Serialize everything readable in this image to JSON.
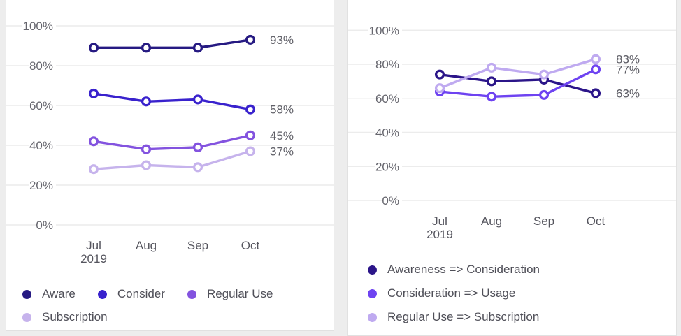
{
  "page": {
    "background": "#ededed",
    "card_background": "#ffffff",
    "card_border": "#e1e1e1",
    "gridline_color": "#ececec",
    "ytick_label_color": "#65656d",
    "xtick_label_color": "#55555e",
    "end_label_color": "#5e5e66",
    "legend_text_color": "#4f4f58"
  },
  "chart_data": [
    {
      "type": "line",
      "title": "",
      "categories": [
        "Jul",
        "Aug",
        "Sep",
        "Oct"
      ],
      "x_sub_label": "2019",
      "x_sub_index": 0,
      "ylim": [
        0,
        100
      ],
      "yticks": [
        0,
        20,
        40,
        60,
        80,
        100
      ],
      "ytick_labels": [
        "0%",
        "20%",
        "40%",
        "60%",
        "80%",
        "100%"
      ],
      "grid": true,
      "legend_position": "bottom",
      "legend_layout": "wrap",
      "series": [
        {
          "name": "Aware",
          "color": "#261a82",
          "values": [
            89,
            89,
            89,
            93
          ],
          "end_label": "93%"
        },
        {
          "name": "Consider",
          "color": "#3922cd",
          "values": [
            66,
            62,
            63,
            58
          ],
          "end_label": "58%"
        },
        {
          "name": "Regular Use",
          "color": "#8353df",
          "values": [
            42,
            38,
            39,
            45
          ],
          "end_label": "45%"
        },
        {
          "name": "Subscription",
          "color": "#c6b3ec",
          "values": [
            28,
            30,
            29,
            37
          ],
          "end_label": "37%"
        }
      ]
    },
    {
      "type": "line",
      "title": "",
      "categories": [
        "Jul",
        "Aug",
        "Sep",
        "Oct"
      ],
      "x_sub_label": "2019",
      "x_sub_index": 0,
      "ylim": [
        0,
        100
      ],
      "yticks": [
        0,
        20,
        40,
        60,
        80,
        100
      ],
      "ytick_labels": [
        "0%",
        "20%",
        "40%",
        "60%",
        "80%",
        "100%"
      ],
      "grid": true,
      "legend_position": "bottom",
      "legend_layout": "column",
      "series": [
        {
          "name": "Awareness => Consideration",
          "color": "#2b1589",
          "values": [
            74,
            70,
            71,
            63
          ],
          "end_label": "63%"
        },
        {
          "name": "Consideration => Usage",
          "color": "#6e43f1",
          "values": [
            64,
            61,
            62,
            77
          ],
          "end_label": "77%"
        },
        {
          "name": "Regular Use => Subscription",
          "color": "#bfaaf0",
          "values": [
            66,
            78,
            74,
            83
          ],
          "end_label": "83%"
        }
      ]
    }
  ]
}
